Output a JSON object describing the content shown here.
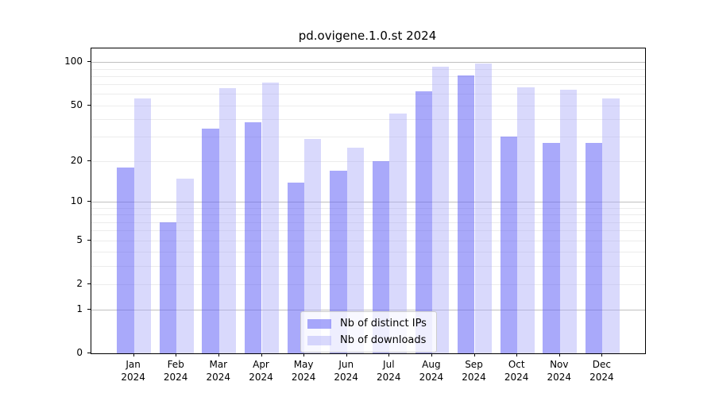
{
  "figure": {
    "background": "#ffffff"
  },
  "chart_data": {
    "type": "bar",
    "title": "pd.ovigene.1.0.st 2024",
    "categories": [
      "Jan",
      "Feb",
      "Mar",
      "Apr",
      "May",
      "Jun",
      "Jul",
      "Aug",
      "Sep",
      "Oct",
      "Nov",
      "Dec"
    ],
    "year_label": "2024",
    "series": [
      {
        "name": "Nb of distinct IPs",
        "color": "rgba(98,98,245,0.55)",
        "values": [
          18,
          7,
          34,
          38,
          14,
          17,
          20,
          63,
          81,
          30,
          27,
          27
        ]
      },
      {
        "name": "Nb of downloads",
        "color": "rgba(170,170,248,0.45)",
        "values": [
          56,
          15,
          66,
          72,
          29,
          25,
          44,
          93,
          98,
          67,
          64,
          56
        ]
      }
    ],
    "y_scale": "log10(1+x)",
    "y_ticks": [
      0,
      1,
      2,
      5,
      10,
      20,
      50,
      100
    ],
    "y_gridlines_major": [
      1,
      10,
      100
    ],
    "y_gridlines_minor": [
      2,
      3,
      4,
      5,
      6,
      7,
      8,
      9,
      20,
      30,
      40,
      50,
      60,
      70,
      80,
      90
    ],
    "ylim": [
      0,
      124.4
    ],
    "xlim": [
      -1,
      12
    ],
    "bar_width_units": 0.4,
    "grid": true,
    "legend_position": "bottom-center",
    "axis_color": "#000000",
    "grid_major_color": "#c0c0c0",
    "grid_minor_color": "#ececec",
    "text_color": "#000000"
  }
}
